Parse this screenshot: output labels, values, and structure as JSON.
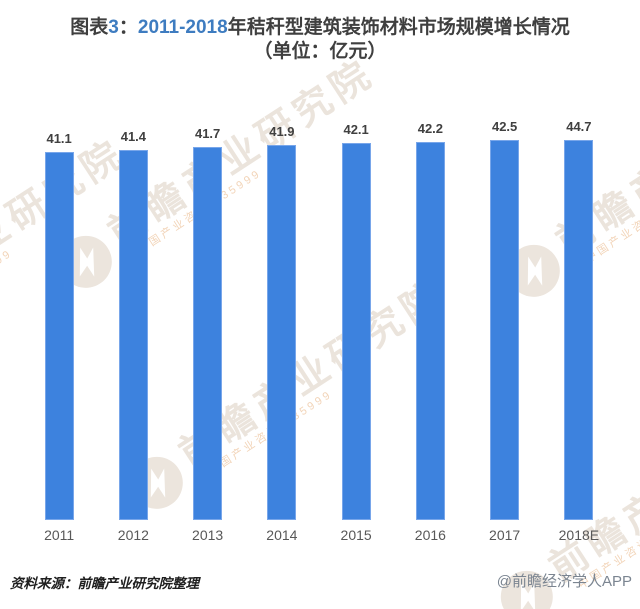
{
  "chart_data": {
    "type": "bar",
    "categories": [
      "2011",
      "2012",
      "2013",
      "2014",
      "2015",
      "2016",
      "2017",
      "2018E"
    ],
    "values": [
      41.1,
      41.4,
      41.7,
      41.9,
      42.1,
      42.2,
      42.5,
      44.7
    ],
    "title": "图表3：2011-2018年秸秆型建筑装饰材料市场规模增长情况（单位：亿元）",
    "xlabel": "",
    "ylabel": "",
    "ylim": [
      0,
      44.7
    ],
    "grid": false,
    "legend": false,
    "data_labels": true,
    "bar_color": "#3d82de"
  },
  "title": {
    "parts": [
      {
        "text": "图表"
      },
      {
        "text": "3"
      },
      {
        "text": "："
      },
      {
        "text": "2011-2018"
      },
      {
        "text": "年秸秆型建筑装饰材料市场规模增长情况"
      }
    ],
    "line2": "（单位：亿元）"
  },
  "footer": {
    "source": "资料来源：前瞻产业研究院整理",
    "credit": "@前瞻经济学人APP"
  },
  "watermark": {
    "main": "前瞻产业研究院",
    "sub": "中国产业咨询·835999",
    "logo": "qianzhan-logo"
  },
  "colors": {
    "bar": "#3d82de",
    "title_dark": "#3f3f3f",
    "title_blue": "#3e7cc0",
    "axis_label": "#585858",
    "value_label": "#404040",
    "credit_gray": "#7b8591"
  }
}
